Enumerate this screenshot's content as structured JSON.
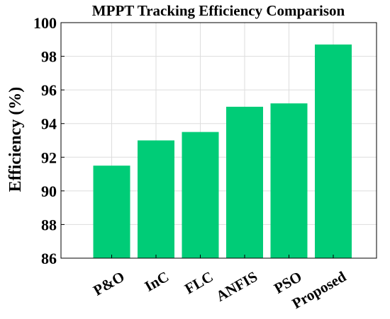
{
  "chart_data": {
    "type": "bar",
    "title": "MPPT Tracking Efficiency Comparison",
    "xlabel": "",
    "ylabel": "Efficiency (%)",
    "categories": [
      "P&O",
      "InC",
      "FLC",
      "ANFIS",
      "PSO",
      "Proposed"
    ],
    "values": [
      91.5,
      93.0,
      93.5,
      95.0,
      95.2,
      98.7
    ],
    "ylim": [
      86,
      100
    ],
    "yticks": [
      86,
      88,
      90,
      92,
      94,
      96,
      98,
      100
    ],
    "grid": true,
    "bar_color": "#00cc77",
    "grid_color": "#dddddd",
    "legend": "none"
  }
}
